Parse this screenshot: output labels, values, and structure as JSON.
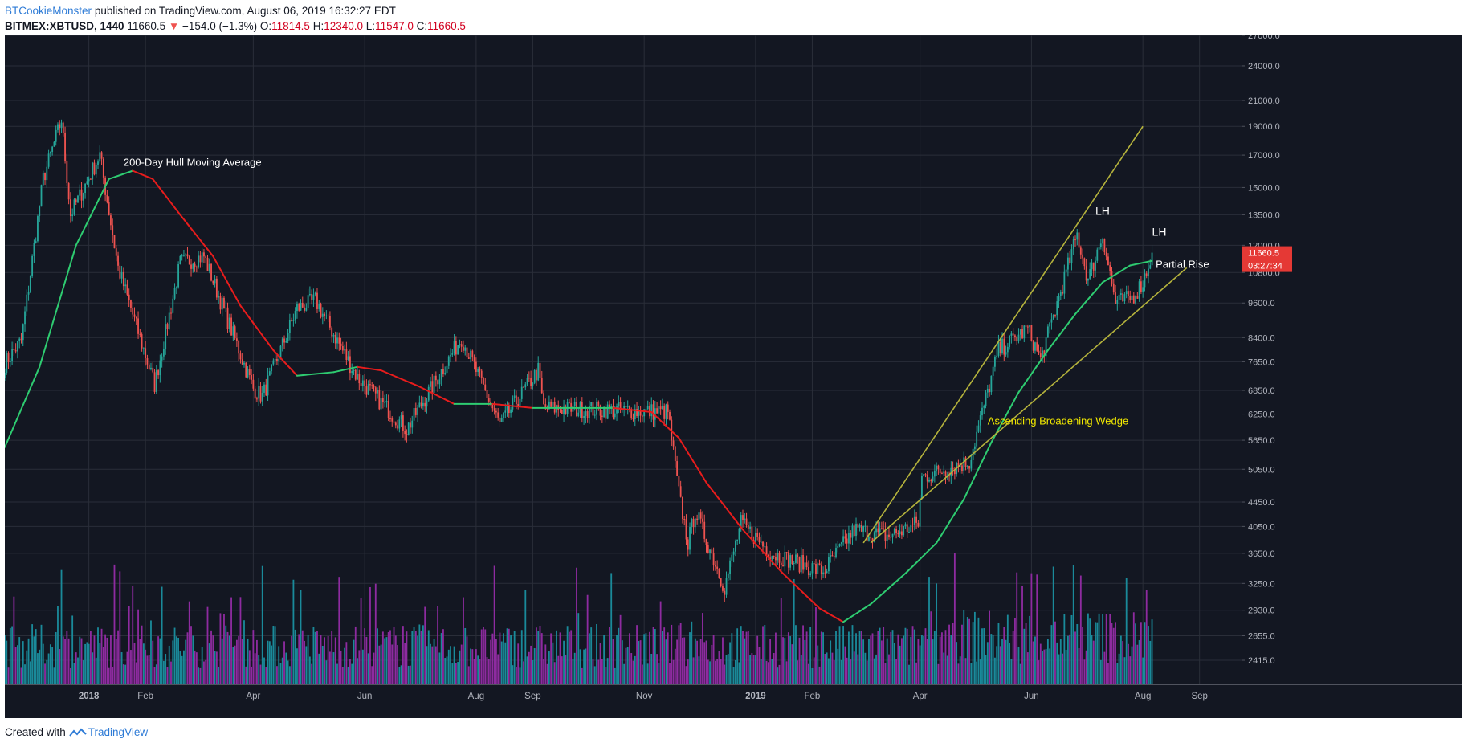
{
  "header": {
    "author": "BTCookieMonster",
    "published": "published on TradingView.com, August 06, 2019 16:32:27 EDT",
    "symbol": "BITMEX:XBTUSD, 1440",
    "last": "11660.5",
    "change": "−154.0 (−1.3%)",
    "o_label": "O:",
    "o_value": "11814.5",
    "h_label": "H:",
    "h_value": "12340.0",
    "l_label": "L:",
    "l_value": "11547.0",
    "c_label": "C:",
    "c_value": "11660.5"
  },
  "footer": {
    "created_with": "Created with",
    "brand": "TradingView"
  },
  "colors": {
    "background": "#131722",
    "grid": "#2a2e39",
    "up": "#26a69a",
    "down": "#ef5350",
    "hma_up": "#2ecc71",
    "hma_down": "#e81c1c",
    "trendline": "#b5b33c",
    "volume_up": "#1a8a9a",
    "volume_down": "#8e2ba0",
    "price_tag": "#e53935",
    "wedge_label": "#f2e900",
    "axis_text": "#b2b5be"
  },
  "chart_data": {
    "type": "candlestick",
    "symbol": "BITMEX:XBTUSD",
    "interval": "1440",
    "scale": "log",
    "y_ticks": [
      2415,
      2655,
      2930,
      3250,
      3650,
      4050,
      4450,
      5050,
      5650,
      6250,
      6850,
      7650,
      8400,
      9600,
      10800,
      12000,
      13500,
      15000,
      17000,
      19000,
      21000,
      24000,
      27000
    ],
    "y_tick_labels": [
      "2415.0",
      "2655.0",
      "2930.0",
      "3250.0",
      "3650.0",
      "4050.0",
      "4450.0",
      "5050.0",
      "5650.0",
      "6250.0",
      "6850.0",
      "7650.0",
      "8400.0",
      "9600.0",
      "10800.0",
      "12000.0",
      "13500.0",
      "15000.0",
      "17000.0",
      "19000.0",
      "21000.0",
      "24000.0",
      "27000.0"
    ],
    "x_ticks": [
      {
        "label": "2018",
        "date": "2018-01-01"
      },
      {
        "label": "Feb",
        "date": "2018-02-01"
      },
      {
        "label": "Apr",
        "date": "2018-04-01"
      },
      {
        "label": "Jun",
        "date": "2018-06-01"
      },
      {
        "label": "Aug",
        "date": "2018-08-01"
      },
      {
        "label": "Sep",
        "date": "2018-09-01"
      },
      {
        "label": "Nov",
        "date": "2018-11-01"
      },
      {
        "label": "2019",
        "date": "2019-01-01"
      },
      {
        "label": "Feb",
        "date": "2019-02-01"
      },
      {
        "label": "Apr",
        "date": "2019-04-01"
      },
      {
        "label": "Jun",
        "date": "2019-06-01"
      },
      {
        "label": "Aug",
        "date": "2019-08-01"
      },
      {
        "label": "Sep",
        "date": "2019-09-01"
      }
    ],
    "price_anchors": [
      {
        "date": "2017-11-16",
        "price": 7600
      },
      {
        "date": "2017-11-25",
        "price": 8300
      },
      {
        "date": "2017-12-07",
        "price": 15500
      },
      {
        "date": "2017-12-17",
        "price": 19500
      },
      {
        "date": "2017-12-22",
        "price": 13500
      },
      {
        "date": "2018-01-07",
        "price": 17000
      },
      {
        "date": "2018-01-17",
        "price": 11000
      },
      {
        "date": "2018-02-06",
        "price": 7000
      },
      {
        "date": "2018-02-20",
        "price": 11200
      },
      {
        "date": "2018-03-05",
        "price": 11500
      },
      {
        "date": "2018-04-01",
        "price": 6900
      },
      {
        "date": "2018-04-06",
        "price": 6700
      },
      {
        "date": "2018-04-25",
        "price": 9400
      },
      {
        "date": "2018-05-05",
        "price": 9700
      },
      {
        "date": "2018-05-28",
        "price": 7200
      },
      {
        "date": "2018-06-24",
        "price": 5900
      },
      {
        "date": "2018-07-24",
        "price": 8400
      },
      {
        "date": "2018-08-14",
        "price": 6000
      },
      {
        "date": "2018-09-04",
        "price": 7400
      },
      {
        "date": "2018-09-07",
        "price": 6400
      },
      {
        "date": "2018-11-14",
        "price": 6300
      },
      {
        "date": "2018-11-20",
        "price": 4600
      },
      {
        "date": "2018-11-25",
        "price": 3800
      },
      {
        "date": "2018-11-29",
        "price": 4300
      },
      {
        "date": "2018-12-15",
        "price": 3200
      },
      {
        "date": "2018-12-24",
        "price": 4100
      },
      {
        "date": "2019-01-10",
        "price": 3650
      },
      {
        "date": "2019-02-07",
        "price": 3400
      },
      {
        "date": "2019-02-24",
        "price": 4000
      },
      {
        "date": "2019-03-15",
        "price": 3900
      },
      {
        "date": "2019-03-31",
        "price": 4100
      },
      {
        "date": "2019-04-02",
        "price": 4900
      },
      {
        "date": "2019-04-28",
        "price": 5200
      },
      {
        "date": "2019-05-14",
        "price": 8000
      },
      {
        "date": "2019-05-30",
        "price": 8700
      },
      {
        "date": "2019-06-06",
        "price": 7700
      },
      {
        "date": "2019-06-26",
        "price": 12500
      },
      {
        "date": "2019-07-02",
        "price": 10500
      },
      {
        "date": "2019-07-10",
        "price": 12500
      },
      {
        "date": "2019-07-17",
        "price": 9600
      },
      {
        "date": "2019-07-26",
        "price": 9800
      },
      {
        "date": "2019-08-01",
        "price": 10400
      },
      {
        "date": "2019-08-06",
        "price": 11660.5
      }
    ],
    "hull_moving_average": {
      "label": "200-Day Hull Moving Average",
      "points": [
        {
          "date": "2017-11-16",
          "value": 5500
        },
        {
          "date": "2017-12-05",
          "value": 7500
        },
        {
          "date": "2017-12-25",
          "value": 12000
        },
        {
          "date": "2018-01-12",
          "value": 15500
        },
        {
          "date": "2018-01-25",
          "value": 16000
        },
        {
          "date": "2018-02-05",
          "value": 15500
        },
        {
          "date": "2018-02-20",
          "value": 13500
        },
        {
          "date": "2018-03-10",
          "value": 11500
        },
        {
          "date": "2018-03-25",
          "value": 9500
        },
        {
          "date": "2018-04-12",
          "value": 8000
        },
        {
          "date": "2018-04-25",
          "value": 7250
        },
        {
          "date": "2018-05-15",
          "value": 7350
        },
        {
          "date": "2018-05-28",
          "value": 7500
        },
        {
          "date": "2018-06-10",
          "value": 7400
        },
        {
          "date": "2018-07-01",
          "value": 6950
        },
        {
          "date": "2018-07-20",
          "value": 6500
        },
        {
          "date": "2018-08-10",
          "value": 6500
        },
        {
          "date": "2018-09-01",
          "value": 6400
        },
        {
          "date": "2018-10-15",
          "value": 6400
        },
        {
          "date": "2018-11-05",
          "value": 6300
        },
        {
          "date": "2018-11-20",
          "value": 5700
        },
        {
          "date": "2018-12-05",
          "value": 4800
        },
        {
          "date": "2018-12-25",
          "value": 4000
        },
        {
          "date": "2019-01-15",
          "value": 3400
        },
        {
          "date": "2019-02-05",
          "value": 2950
        },
        {
          "date": "2019-02-18",
          "value": 2800
        },
        {
          "date": "2019-03-05",
          "value": 3000
        },
        {
          "date": "2019-03-25",
          "value": 3400
        },
        {
          "date": "2019-04-10",
          "value": 3800
        },
        {
          "date": "2019-04-25",
          "value": 4500
        },
        {
          "date": "2019-05-10",
          "value": 5600
        },
        {
          "date": "2019-05-25",
          "value": 6800
        },
        {
          "date": "2019-06-10",
          "value": 8000
        },
        {
          "date": "2019-06-25",
          "value": 9200
        },
        {
          "date": "2019-07-10",
          "value": 10400
        },
        {
          "date": "2019-07-25",
          "value": 11100
        },
        {
          "date": "2019-08-06",
          "value": 11300
        }
      ]
    },
    "trendlines": [
      {
        "from": {
          "date": "2019-03-01",
          "price": 3800
        },
        "to": {
          "date": "2019-08-01",
          "price": 19000
        }
      },
      {
        "from": {
          "date": "2019-03-05",
          "price": 3800
        },
        "to": {
          "date": "2019-08-25",
          "price": 11000
        }
      }
    ],
    "annotations": [
      {
        "text": "200-Day Hull Moving Average",
        "date": "2018-01-20",
        "price": 16300
      },
      {
        "text": "LH",
        "date": "2019-07-06",
        "price": 13500
      },
      {
        "text": "LH",
        "date": "2019-08-06",
        "price": 12450
      },
      {
        "text": "Partial Rise",
        "date": "2019-08-08",
        "price": 11000
      },
      {
        "text": "Ascending Broadening Wedge",
        "date": "2019-05-08",
        "price": 6000
      }
    ],
    "price_label": "11660.5",
    "countdown_label": "03:27:34",
    "volume_max": 5000000
  }
}
